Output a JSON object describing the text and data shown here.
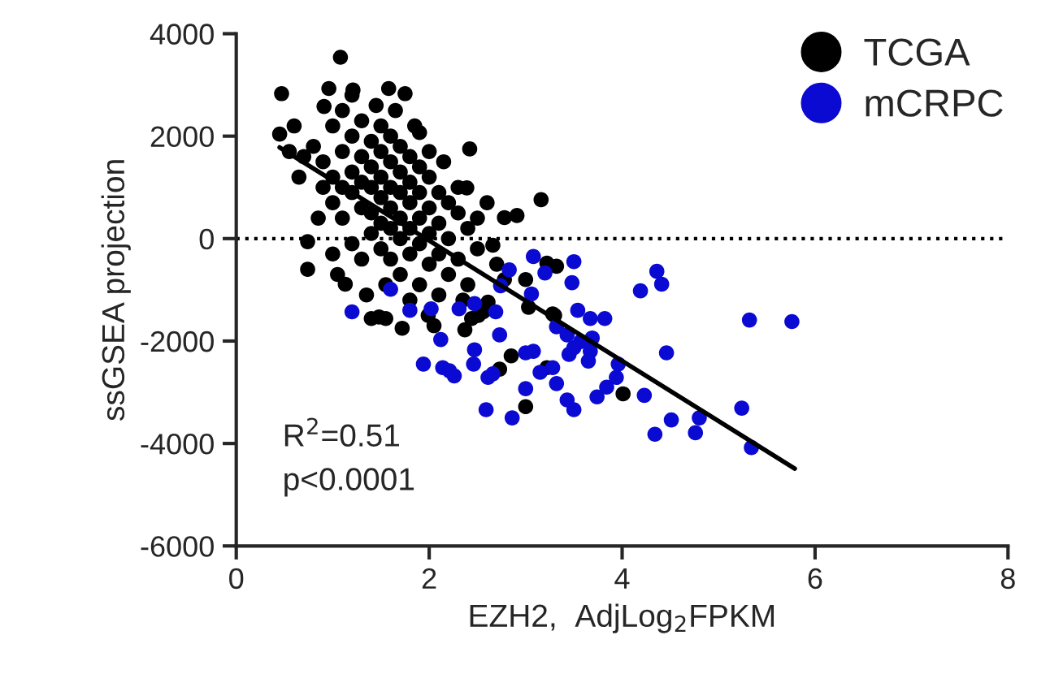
{
  "chart_data": {
    "type": "scatter",
    "xlabel": "EZH2,  AdjLog$_{2}$FPKM",
    "ylabel": "ssGSEA projection",
    "xlim": [
      0,
      8
    ],
    "xticks": [
      0,
      2,
      4,
      6,
      8
    ],
    "ylim": [
      -6000,
      4000
    ],
    "yticks": [
      -6000,
      -4000,
      -2000,
      0,
      2000,
      4000
    ],
    "grid": false,
    "legend": "top right",
    "annotations": [
      "R$^{2}$=0.51",
      "p<0.0001"
    ],
    "ref_lines": [
      {
        "axis": "y",
        "value": 0,
        "line_style": "dotted",
        "color": "#000000"
      }
    ],
    "series": [
      {
        "name": "TCGA",
        "color": "#000000",
        "marker": "circle",
        "x": [
          1.08,
          0.47,
          0.45,
          0.96,
          1.58,
          1.75,
          1.21,
          0.91,
          0.74,
          0.74,
          1.13,
          1.4,
          1.72,
          1.55,
          2.78,
          2.42,
          1.9,
          2.39,
          2.66,
          2.37,
          2.61,
          2.56,
          3.16,
          2.91,
          3.22,
          3.32,
          3.0,
          2.78,
          3.03,
          2.51,
          2.44,
          1.99,
          1.48,
          2.85,
          2.73,
          3.22,
          3.0,
          4.01,
          3.28,
          3.3,
          0.8,
          1.0,
          0.9,
          1.0,
          1.1,
          1.1,
          1.2,
          1.2,
          1.2,
          1.3,
          1.3,
          1.3,
          1.3,
          1.4,
          1.4,
          1.4,
          1.4,
          1.4,
          1.5,
          1.5,
          1.5,
          1.5,
          1.5,
          1.5,
          1.6,
          1.6,
          1.6,
          1.6,
          1.6,
          1.6,
          1.7,
          1.7,
          1.7,
          1.7,
          1.7,
          1.7,
          1.8,
          1.8,
          1.8,
          1.8,
          1.8,
          1.9,
          1.9,
          1.9,
          1.9,
          1.9,
          2.0,
          2.0,
          2.0,
          2.0,
          2.1,
          2.1,
          2.1,
          2.1,
          2.2,
          2.2,
          2.2,
          2.3,
          2.3,
          2.4,
          2.4,
          2.5,
          1.0,
          0.9,
          1.1,
          1.2,
          1.3,
          1.0,
          1.1,
          0.7,
          0.6,
          1.2,
          1.45,
          1.65,
          1.85,
          2.0,
          2.15,
          2.3,
          2.5,
          2.6,
          2.7,
          1.55,
          1.35,
          1.8,
          2.05,
          2.35,
          0.55,
          0.65,
          0.85,
          1.05
        ],
        "values": [
          3540,
          2830,
          2040,
          2930,
          2930,
          2830,
          2900,
          2580,
          -60,
          -600,
          -890,
          -1560,
          -1750,
          -1560,
          410,
          1750,
          2070,
          990,
          -130,
          -1780,
          -1240,
          -1430,
          760,
          450,
          -480,
          -540,
          -800,
          -800,
          -1340,
          -1500,
          -1560,
          -1500,
          -1530,
          -2290,
          -2550,
          -2520,
          -3280,
          -3030,
          -1470,
          -1500,
          1800,
          2200,
          1500,
          1200,
          2500,
          1700,
          2000,
          1300,
          900,
          2300,
          1600,
          1100,
          600,
          1900,
          1400,
          1000,
          500,
          100,
          2200,
          1700,
          1200,
          800,
          300,
          -200,
          2000,
          1500,
          1000,
          600,
          200,
          -400,
          1800,
          1300,
          900,
          400,
          0,
          -700,
          1600,
          1100,
          700,
          200,
          -300,
          1400,
          900,
          400,
          -100,
          -900,
          1200,
          600,
          100,
          -500,
          900,
          300,
          -300,
          -1100,
          700,
          0,
          -700,
          500,
          -400,
          200,
          -900,
          -200,
          700,
          1000,
          400,
          -100,
          -400,
          -300,
          1000,
          1600,
          2200,
          2800,
          2600,
          2500,
          2200,
          1700,
          1500,
          1000,
          400,
          700,
          -500,
          -900,
          -1100,
          -1200,
          -1700,
          -1200,
          1700,
          1200,
          400,
          -700
        ]
      },
      {
        "name": "mCRPC",
        "color": "#0a0ad2",
        "marker": "circle",
        "x": [
          1.2,
          1.8,
          2.02,
          2.31,
          2.47,
          2.69,
          2.83,
          2.74,
          3.08,
          3.2,
          3.06,
          3.5,
          3.48,
          3.54,
          3.67,
          3.82,
          3.32,
          3.43,
          3.57,
          3.5,
          3.69,
          3.67,
          3.45,
          3.65,
          3.28,
          3.15,
          3.0,
          3.08,
          3.0,
          2.73,
          2.47,
          2.46,
          2.12,
          1.94,
          2.14,
          2.21,
          2.26,
          2.61,
          2.66,
          3.32,
          3.43,
          3.5,
          3.74,
          3.84,
          3.94,
          3.96,
          4.23,
          4.46,
          4.19,
          4.36,
          4.41,
          2.59,
          2.86,
          4.34,
          4.51,
          1.6,
          5.32,
          5.76,
          5.24,
          4.8,
          4.76,
          5.34
        ],
        "values": [
          -1430,
          -1400,
          -1370,
          -1370,
          -1270,
          -1430,
          -610,
          -920,
          -350,
          -670,
          -1080,
          -450,
          -860,
          -1400,
          -1560,
          -1560,
          -1720,
          -1880,
          -2010,
          -2130,
          -1940,
          -2200,
          -2260,
          -2390,
          -2520,
          -2610,
          -2930,
          -2200,
          -2230,
          -1880,
          -2170,
          -2450,
          -1970,
          -2450,
          -2520,
          -2580,
          -2680,
          -2710,
          -2640,
          -2830,
          -3150,
          -3340,
          -3090,
          -2900,
          -2710,
          -2450,
          -3060,
          -2230,
          -1020,
          -640,
          -890,
          -3340,
          -3500,
          -3820,
          -3540,
          -990,
          -1590,
          -1620,
          -3310,
          -3500,
          -3790,
          -4080
        ]
      },
      {
        "type": "line",
        "marker": "none",
        "color": "#000000",
        "line_style": "solid",
        "x": [
          0.45,
          5.79
        ],
        "values": [
          1780,
          -4490
        ]
      }
    ]
  }
}
